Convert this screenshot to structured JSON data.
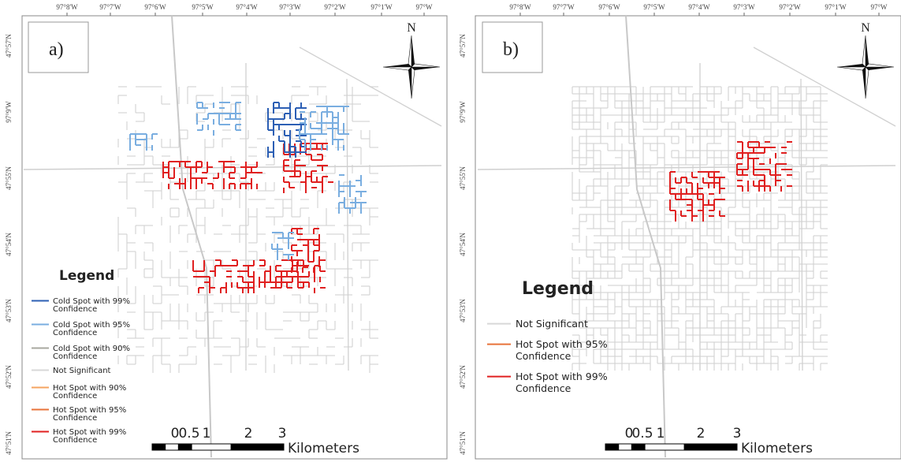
{
  "panels": [
    {
      "tag": "a)",
      "top_labels": [
        "97°8'W",
        "97°7'W",
        "97°6'W",
        "97°5'W",
        "97°4'W",
        "97°3'W",
        "97°2'W",
        "97°1'W",
        "97°W"
      ],
      "left_labels": [
        "47°57'N",
        "97°9'W",
        "47°55'N",
        "47°54'N",
        "47°53'N",
        "47°52'N",
        "47°51'N"
      ],
      "north": "N",
      "legend": {
        "title": "Legend",
        "items": [
          {
            "lines": [
              "Cold Spot with 99%",
              "Confidence"
            ],
            "color": "#2c5fb4"
          },
          {
            "lines": [
              "Cold Spot with 95%",
              "Confidence"
            ],
            "color": "#7aaee0"
          },
          {
            "lines": [
              "Cold Spot with 90%",
              "Confidence"
            ],
            "color": "#a8a8a0"
          },
          {
            "lines": [
              "Not Significant"
            ],
            "color": "#d8d8d8"
          },
          {
            "lines": [
              "Hot Spot with 90%",
              "Confidence"
            ],
            "color": "#f4a460"
          },
          {
            "lines": [
              "Hot Spot with 95%",
              "Confidence"
            ],
            "color": "#e8733a"
          },
          {
            "lines": [
              "Hot Spot with 99%",
              "Confidence"
            ],
            "color": "#e02020"
          }
        ]
      },
      "scale": {
        "labels": [
          "0",
          "0.5",
          "1",
          "2",
          "3"
        ],
        "unit": "Kilometers"
      }
    },
    {
      "tag": "b)",
      "top_labels": [
        "97°8'W",
        "97°7'W",
        "97°6'W",
        "97°5'W",
        "97°4'W",
        "97°3'W",
        "97°2'W",
        "97°1'W",
        "97°W"
      ],
      "left_labels": [
        "47°57'N",
        "97°9'W",
        "47°55'N",
        "47°54'N",
        "47°53'N",
        "47°52'N",
        "47°51'N"
      ],
      "north": "N",
      "legend": {
        "title": "Legend",
        "items": [
          {
            "lines": [
              "Not Significant"
            ],
            "color": "#d8d8d8"
          },
          {
            "lines": [
              "Hot Spot with 95%",
              "Confidence"
            ],
            "color": "#e8733a"
          },
          {
            "lines": [
              "Hot Spot with 99%",
              "Confidence"
            ],
            "color": "#e02020"
          }
        ]
      },
      "scale": {
        "labels": [
          "0",
          "0.5",
          "1",
          "2",
          "3"
        ],
        "unit": "Kilometers"
      }
    }
  ]
}
